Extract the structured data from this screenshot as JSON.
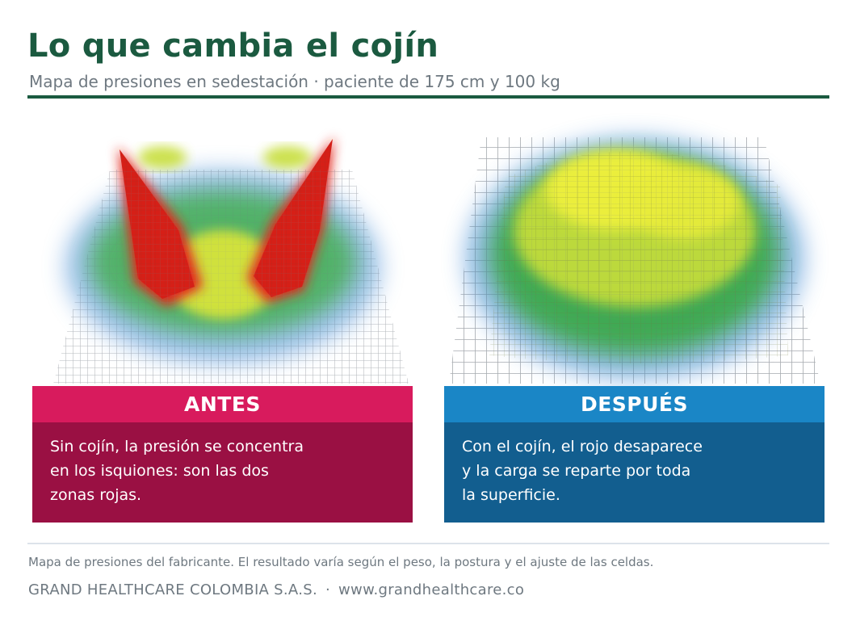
{
  "header": {
    "title": "Lo que cambia el cojín",
    "subtitle": "Mapa de presiones en sedestación · paciente de 175 cm y 100 kg"
  },
  "colors": {
    "brand_green": "#1b5a40",
    "antes_header": "#d81b5d",
    "antes_body": "#9a1043",
    "despues_header": "#1a86c6",
    "despues_body": "#125e8f",
    "text_muted": "#6e7880"
  },
  "panels": {
    "antes": {
      "label": "ANTES",
      "lines": [
        "Sin cojín, la presión se concentra",
        "en los isquiones: son las dos",
        "zonas rojas."
      ]
    },
    "despues": {
      "label": "DESPUÉS",
      "lines": [
        "Con el cojín, el rojo desaparece",
        "y la carga se reparte por toda",
        "la superficie."
      ]
    }
  },
  "footer": {
    "note": "Mapa de presiones del fabricante. El resultado varía según el peso, la postura y el ajuste de las celdas.",
    "company": "GRAND HEALTHCARE COLOMBIA S.A.S.",
    "separator": "·",
    "website": "www.grandhealthcare.co"
  }
}
